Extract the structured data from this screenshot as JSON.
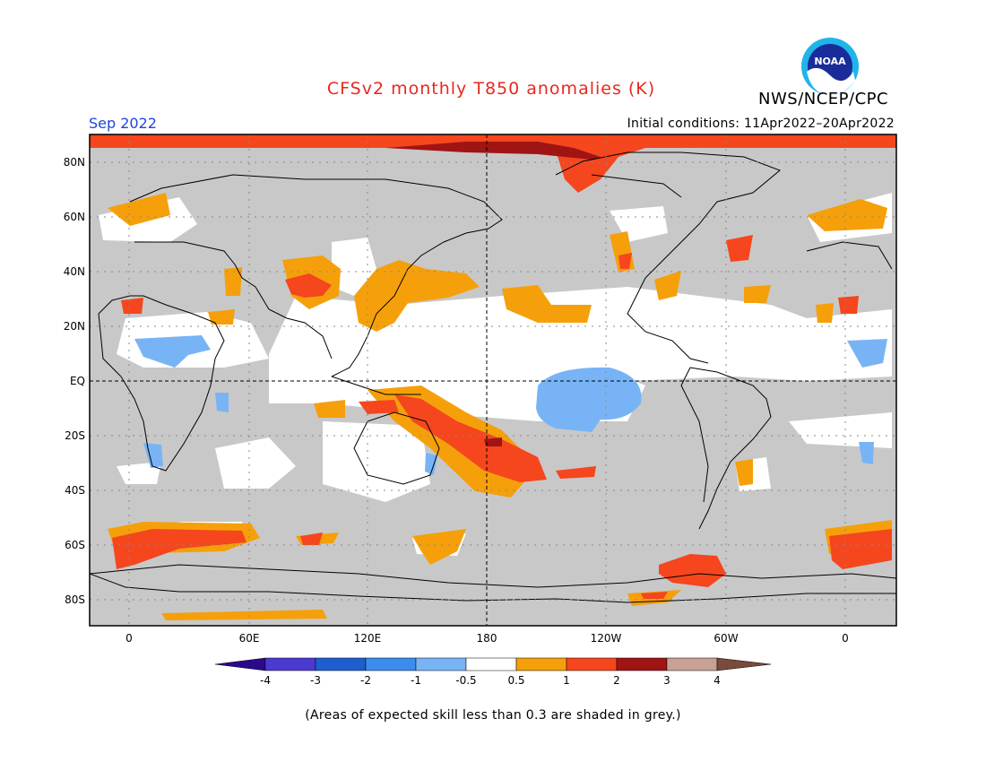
{
  "header": {
    "title": "CFSv2 monthly T850 anomalies (K)",
    "agency": "NWS/NCEP/CPC",
    "month": "Sep 2022",
    "initial_conditions": "Initial conditions: 11Apr2022–20Apr2022"
  },
  "logo": {
    "text": "NOAA"
  },
  "map": {
    "lat_labels": [
      "80N",
      "60N",
      "40N",
      "20N",
      "EQ",
      "20S",
      "40S",
      "60S",
      "80S"
    ],
    "lon_labels": [
      "0",
      "60E",
      "120E",
      "180",
      "120W",
      "60W",
      "0"
    ],
    "grey_meaning": "low skill"
  },
  "colorbar": {
    "labels": [
      "-4",
      "-3",
      "-2",
      "-1",
      "-0.5",
      "0.5",
      "1",
      "2",
      "3",
      "4"
    ],
    "colors": [
      "#2a0a8a",
      "#4a3ad0",
      "#1e5ecf",
      "#3c8cef",
      "#78b4f5",
      "#ffffff",
      "#f5a00a",
      "#f5461e",
      "#a01414",
      "#c8a096",
      "#7a4a3a"
    ]
  },
  "footnote": "(Areas of expected skill less than 0.3 are shaded in grey.)"
}
